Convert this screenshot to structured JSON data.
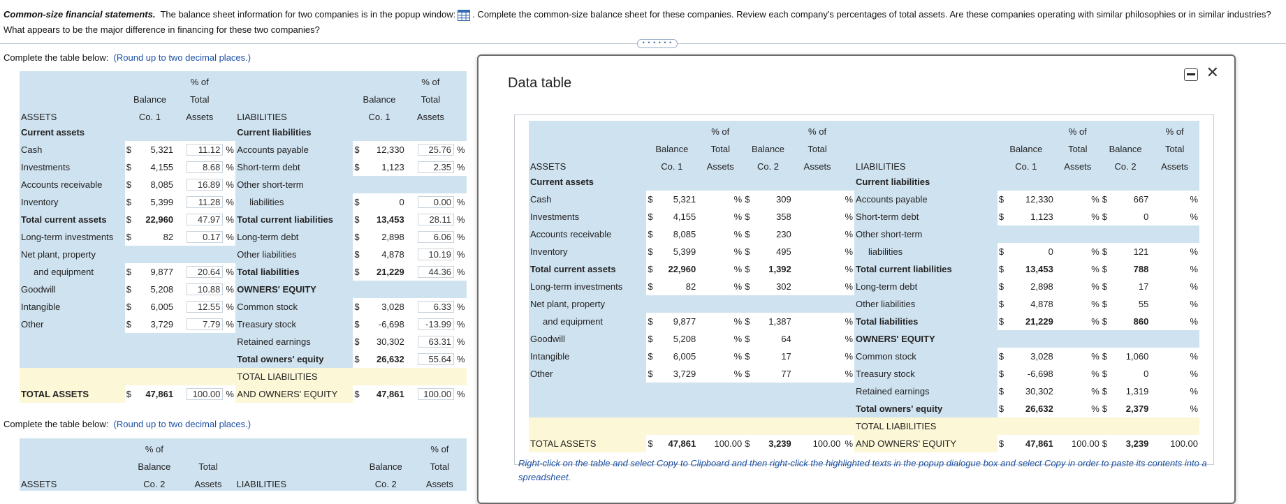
{
  "question": {
    "title": "Common-size financial statements.",
    "line1_a": "The balance sheet information for two companies is in the popup window:",
    "line1_b": ". Complete the common-size balance sheet for these companies.  Review each company's percentages of total assets.  Are these companies operating with similar philosophies or in similar industries?",
    "line2": "What appears to be the major difference in financing for these two companies?"
  },
  "instruction": {
    "prefix": "Complete the table below:",
    "hint": "(Round up to two decimal places.)"
  },
  "headers": {
    "pct_of": "% of",
    "balance": "Balance",
    "total": "Total",
    "assets": "Assets",
    "co1": "Co. 1",
    "co2": "Co. 2",
    "assets_col": "ASSETS",
    "liab_col": "LIABILITIES"
  },
  "sym": {
    "dollar": "$",
    "pct": "%"
  },
  "labels": {
    "current_assets": "Current assets",
    "cash": "Cash",
    "investments": "Investments",
    "accounts_receivable": "Accounts receivable",
    "inventory": "Inventory",
    "total_current_assets": "Total current assets",
    "long_term_investments": "Long-term investments",
    "net_plant_1": "Net plant, property",
    "net_plant_2": "and equipment",
    "goodwill": "Goodwill",
    "intangible": "Intangible",
    "other": "Other",
    "total_assets": "TOTAL ASSETS",
    "current_liabilities": "Current liabilities",
    "accounts_payable": "Accounts payable",
    "short_term_debt": "Short-term debt",
    "other_short_term_1": "Other short-term",
    "other_short_term_2": "liabilities",
    "total_current_liabilities": "Total current liabilities",
    "long_term_debt": "Long-term debt",
    "other_liabilities": "Other liabilities",
    "total_liabilities": "Total liabilities",
    "owners_equity": "OWNERS' EQUITY",
    "common_stock": "Common stock",
    "treasury_stock": "Treasury stock",
    "retained_earnings": "Retained earnings",
    "total_owners_equity": "Total owners' equity",
    "total_liab_equity_1": "TOTAL LIABILITIES",
    "total_liab_equity_2": "AND OWNERS' EQUITY"
  },
  "co1": {
    "cash": "5,321",
    "investments": "4,155",
    "accounts_receivable": "8,085",
    "inventory": "5,399",
    "total_current_assets": "22,960",
    "long_term_investments": "82",
    "net_plant": "9,877",
    "goodwill": "5,208",
    "intangible": "6,005",
    "other": "3,729",
    "total_assets": "47,861",
    "accounts_payable": "12,330",
    "short_term_debt": "1,123",
    "other_short_term": "0",
    "total_current_liabilities": "13,453",
    "long_term_debt": "2,898",
    "other_liabilities": "4,878",
    "total_liabilities": "21,229",
    "common_stock": "3,028",
    "treasury_stock": "-6,698",
    "retained_earnings": "30,302",
    "total_owners_equity": "26,632",
    "total_liab_equity": "47,861"
  },
  "co1_pct": {
    "cash": "11.12",
    "investments": "8.68",
    "accounts_receivable": "16.89",
    "inventory": "11.28",
    "total_current_assets": "47.97",
    "long_term_investments": "0.17",
    "net_plant": "20.64",
    "goodwill": "10.88",
    "intangible": "12.55",
    "other": "7.79",
    "total_assets": "100.00",
    "accounts_payable": "25.76",
    "short_term_debt": "2.35",
    "other_short_term": "0.00",
    "total_current_liabilities": "28.11",
    "long_term_debt": "6.06",
    "other_liabilities": "10.19",
    "total_liabilities": "44.36",
    "common_stock": "6.33",
    "treasury_stock": "-13.99",
    "retained_earnings": "63.31",
    "total_owners_equity": "55.64",
    "total_liab_equity": "100.00"
  },
  "co2": {
    "cash": "309",
    "investments": "358",
    "accounts_receivable": "230",
    "inventory": "495",
    "total_current_assets": "1,392",
    "long_term_investments": "302",
    "net_plant": "1,387",
    "goodwill": "64",
    "intangible": "17",
    "other": "77",
    "total_assets": "3,239",
    "accounts_payable": "667",
    "short_term_debt": "0",
    "other_short_term": "121",
    "total_current_liabilities": "788",
    "long_term_debt": "17",
    "other_liabilities": "55",
    "total_liabilities": "860",
    "common_stock": "1,060",
    "treasury_stock": "0",
    "retained_earnings": "1,319",
    "total_owners_equity": "2,379",
    "total_liab_equity": "3,239"
  },
  "modal": {
    "title": "Data table",
    "note": "Right-click on the table and select Copy to Clipboard and then right-click the highlighted texts in the popup dialogue box and select Copy in order to paste its contents into a spreadsheet.",
    "total_pct": "100.00"
  },
  "colors": {
    "header_blue": "#cfe2f0",
    "total_yellow": "#fcf7d6",
    "hint_blue": "#1b4fa3"
  }
}
